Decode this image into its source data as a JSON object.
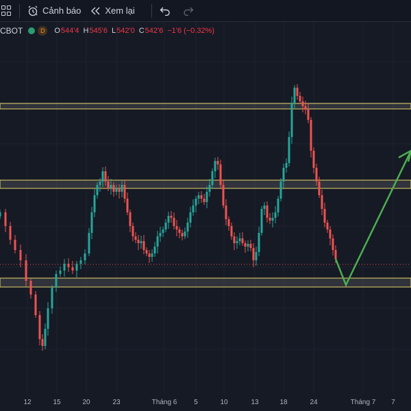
{
  "toolbar": {
    "alert_label": "Cảnh báo",
    "replay_label": "Xem lại"
  },
  "legend": {
    "symbol": "CBOT",
    "interval_badge": "D",
    "open_label": "O",
    "open_value": "544'4",
    "high_label": "H",
    "high_value": "545'6",
    "low_label": "L",
    "low_value": "542'0",
    "close_label": "C",
    "close_value": "542'6",
    "change": "−1'6 (−0.32%)"
  },
  "x_axis": {
    "ticks": [
      "12",
      "15",
      "20",
      "23",
      "Tháng 6",
      "5",
      "10",
      "13",
      "18",
      "24",
      "Tháng 7",
      "7"
    ]
  },
  "colors": {
    "up": "#26a69a",
    "down": "#ef5350",
    "zone_border": "#e8d56a",
    "projection": "#4caf50"
  }
}
